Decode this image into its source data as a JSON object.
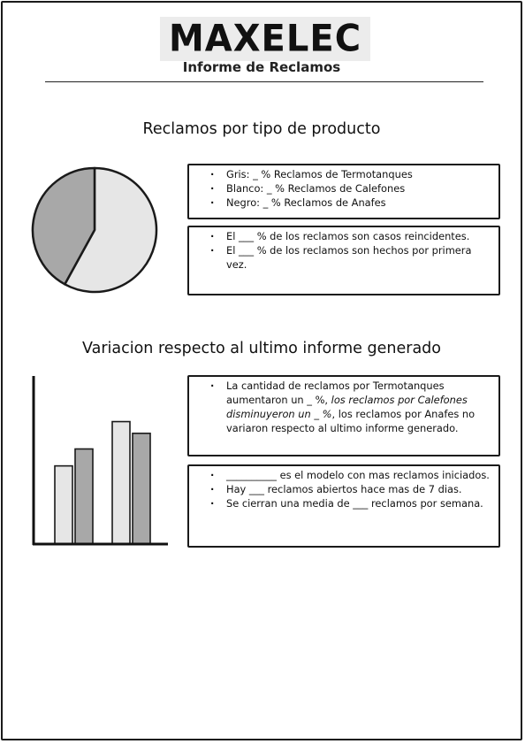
{
  "header": {
    "logo_text": "MAXELEC",
    "subtitle": "Informe de Reclamos"
  },
  "section1": {
    "title": "Reclamos por tipo de producto",
    "pie_chart": {
      "type": "pie",
      "slices": [
        {
          "value": 58,
          "color": "#e6e6e6"
        },
        {
          "value": 42,
          "color": "#a8a8a8"
        }
      ]
    },
    "colors_box": {
      "items": [
        "Gris: _ % Reclamos de Termotanques",
        "Blanco: _ % Reclamos de Calefones",
        "Negro: _ % Reclamos de Anafes"
      ]
    },
    "recurrence_box": {
      "items": [
        "El ___ % de los reclamos son casos reincidentes.",
        "El ___ % de los reclamos son hechos por primera vez."
      ]
    }
  },
  "section2": {
    "title": "Variacion respecto al ultimo informe generado",
    "bar_chart": {
      "type": "bar",
      "groups": [
        {
          "values": [
            60,
            73
          ]
        },
        {
          "values": [
            94,
            85
          ]
        }
      ],
      "ylim": [
        0,
        110
      ],
      "colors": [
        "#e6e6e6",
        "#a8a8a8"
      ]
    },
    "variation_box": {
      "part1": "La cantidad de reclamos por Termotanques aumentaron un _ %, ",
      "part2_italic": "los reclamos por Calefones disminuyeron un _ %",
      "part3": ", los reclamos por Anafes no variaron respecto al ultimo informe generado."
    },
    "stats_box": {
      "items": [
        "__________ es el modelo con mas reclamos iniciados.",
        "Hay ___ reclamos abiertos hace mas de 7 dias.",
        "Se cierran una media de ___ reclamos por semana."
      ]
    }
  },
  "chart_data": [
    {
      "type": "pie",
      "values": [
        58,
        42
      ]
    },
    {
      "type": "bar",
      "series": [
        {
          "values": [
            60,
            94
          ]
        },
        {
          "values": [
            73,
            85
          ]
        }
      ],
      "ylim": [
        0,
        110
      ]
    }
  ]
}
